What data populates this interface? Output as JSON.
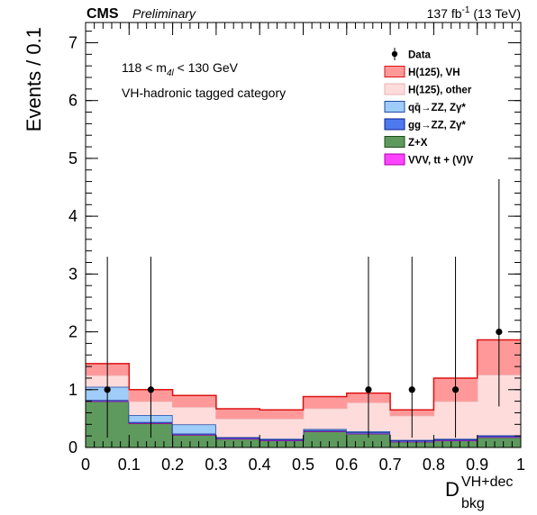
{
  "header": {
    "experiment": "CMS",
    "status": "Preliminary",
    "lumi_value": "137 fb",
    "lumi_exp": "-1",
    "lumi_energy": " (13 TeV)"
  },
  "annotations": {
    "mass_pre": "118 < m",
    "mass_sub": "4l",
    "mass_post": " < 130 GeV",
    "category": "VH-hadronic tagged category"
  },
  "chart_data": {
    "type": "bar",
    "stacked": true,
    "bin_edges": [
      0,
      0.1,
      0.2,
      0.3,
      0.4,
      0.5,
      0.6,
      0.7,
      0.8,
      0.9,
      1.0
    ],
    "xlim": [
      0,
      1
    ],
    "ylim": [
      0,
      7.35
    ],
    "xticks": [
      0,
      0.1,
      0.2,
      0.3,
      0.4,
      0.5,
      0.6,
      0.7,
      0.8,
      0.9,
      1
    ],
    "xtick_labels": [
      "0",
      "0.1",
      "0.2",
      "0.3",
      "0.4",
      "0.5",
      "0.6",
      "0.7",
      "0.8",
      "0.9",
      "1"
    ],
    "yticks": [
      0,
      1,
      2,
      3,
      4,
      5,
      6,
      7
    ],
    "ytick_labels": [
      "0",
      "1",
      "2",
      "3",
      "4",
      "5",
      "6",
      "7"
    ],
    "xlabel_main": "D",
    "xlabel_sub": "bkg",
    "xlabel_sup": "VH+dec",
    "ylabel": "Events / 0.1",
    "legend_position": "top-right",
    "series": [
      {
        "name": "Z+X",
        "fill": "#5e9a5e",
        "line": "#1b4d1b",
        "values": [
          0.8,
          0.42,
          0.22,
          0.15,
          0.12,
          0.28,
          0.24,
          0.1,
          0.12,
          0.18
        ]
      },
      {
        "name": "VVV, tt + (V)V",
        "fill": "#ff44ff",
        "line": "#aa00aa",
        "values": [
          0.0,
          0.0,
          0.0,
          0.0,
          0.0,
          0.0,
          0.0,
          0.0,
          0.0,
          0.0
        ]
      },
      {
        "name": "gg→ZZ, Zγ*",
        "fill": "#4f79ef",
        "line": "#0a1e8c",
        "values": [
          0.02,
          0.02,
          0.02,
          0.02,
          0.02,
          0.02,
          0.02,
          0.02,
          0.02,
          0.02
        ]
      },
      {
        "name": "qq̄→ZZ, Zγ*",
        "fill": "#9fccf8",
        "line": "#1f4aa8",
        "values": [
          0.23,
          0.12,
          0.16,
          0.01,
          0.01,
          0.02,
          0.02,
          0.01,
          0.01,
          0.01
        ]
      },
      {
        "name": "H(125), other",
        "fill": "#ffdcdc",
        "line": "#e8b0b0",
        "values": [
          0.2,
          0.24,
          0.3,
          0.32,
          0.35,
          0.36,
          0.5,
          0.42,
          0.65,
          1.05
        ]
      },
      {
        "name": "H(125), VH",
        "fill": "#ff9999",
        "line": "#dd1111",
        "values": [
          0.2,
          0.2,
          0.2,
          0.17,
          0.15,
          0.2,
          0.16,
          0.1,
          0.4,
          0.6
        ]
      }
    ],
    "data_points": {
      "name": "Data",
      "x": [
        0.05,
        0.15,
        0.65,
        0.75,
        0.85,
        0.95
      ],
      "y": [
        1,
        1,
        1,
        1,
        1,
        2
      ],
      "err_low": [
        0.83,
        0.83,
        0.83,
        0.83,
        0.83,
        1.29
      ],
      "err_high": [
        2.3,
        2.3,
        2.3,
        2.3,
        2.3,
        2.64
      ]
    },
    "legend": [
      {
        "label": "Data",
        "kind": "marker"
      },
      {
        "label": "H(125), VH",
        "kind": "box",
        "fill": "#ff9999",
        "line": "#dd1111"
      },
      {
        "label": "H(125), other",
        "kind": "box",
        "fill": "#ffdcdc",
        "line": "#e8b0b0"
      },
      {
        "label": "qq̄→ZZ, Zγ*",
        "kind": "box",
        "fill": "#9fccf8",
        "line": "#1f4aa8"
      },
      {
        "label": "gg→ZZ, Zγ*",
        "kind": "box",
        "fill": "#4f79ef",
        "line": "#0a1e8c"
      },
      {
        "label": "Z+X",
        "kind": "box",
        "fill": "#5e9a5e",
        "line": "#1b4d1b"
      },
      {
        "label": "VVV, tt + (V)V",
        "kind": "box",
        "fill": "#ff44ff",
        "line": "#aa00aa"
      }
    ]
  }
}
